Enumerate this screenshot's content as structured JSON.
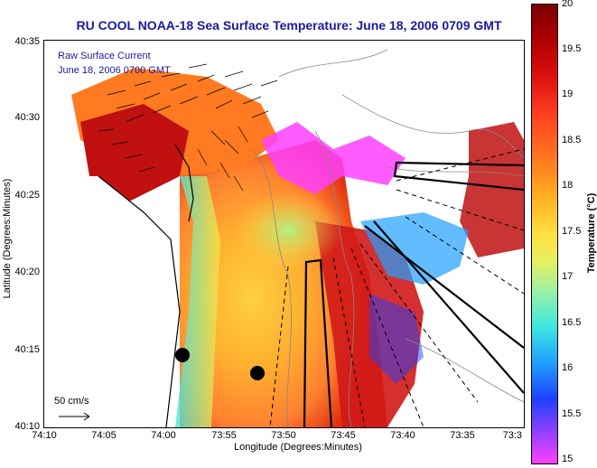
{
  "title": "RU COOL  NOAA-18  Sea Surface Temperature:  June 18, 2006 0709 GMT",
  "legend": {
    "line1": "Raw Surface Current",
    "line2": "June 18, 2006 0700 GMT"
  },
  "axes": {
    "xlabel": "Longitude (Degrees:Minutes)",
    "ylabel": "Latitude (Degrees:Minutes)",
    "xticks": [
      "74:10",
      "74:05",
      "74:00",
      "73:55",
      "73:50",
      "73:45",
      "73:40",
      "73:35",
      "73:3"
    ],
    "yticks": [
      "40:35",
      "40:30",
      "40:25",
      "40:20",
      "40:15",
      "40:10"
    ]
  },
  "colorbar": {
    "label": "Temperature (°C)",
    "ticks": [
      "20",
      "19.5",
      "19",
      "18.5",
      "18",
      "17.5",
      "17",
      "16.5",
      "16",
      "15.5",
      "15"
    ],
    "range": [
      15,
      20
    ]
  },
  "scale_arrow": {
    "label": "50 cm/s"
  },
  "colors": {
    "title": "#1a1aa0",
    "land": "#ffffff",
    "warm": "#c00000",
    "cool": "#20c0ff"
  }
}
